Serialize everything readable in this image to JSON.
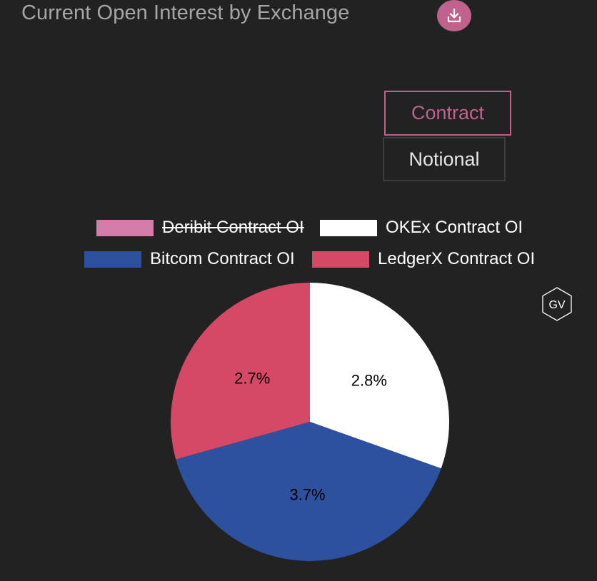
{
  "header": {
    "title": "Current Open Interest by Exchange",
    "download_icon": "download-icon"
  },
  "toggle": {
    "contract_label": "Contract",
    "notional_label": "Notional",
    "active": "Contract"
  },
  "watermark": {
    "text": "GV",
    "icon": "hexagon-logo-icon"
  },
  "colors": {
    "background": "#222222",
    "accent": "#c0628e",
    "deribit": "#d57ba9",
    "okex": "#ffffff",
    "bitcom": "#2d519f",
    "ledgerx": "#d54866"
  },
  "chart_data": {
    "type": "pie",
    "title": "Current Open Interest by Exchange",
    "legend_position": "top",
    "series": [
      {
        "name": "Deribit Contract OI",
        "value": null,
        "label": "",
        "color": "#d57ba9",
        "hidden": true
      },
      {
        "name": "OKEx Contract OI",
        "value": 2.8,
        "label": "2.8%",
        "color": "#ffffff",
        "hidden": false
      },
      {
        "name": "Bitcom Contract OI",
        "value": 3.7,
        "label": "3.7%",
        "color": "#2d519f",
        "hidden": false
      },
      {
        "name": "LedgerX Contract OI",
        "value": 2.7,
        "label": "2.7%",
        "color": "#d54866",
        "hidden": false
      }
    ]
  }
}
